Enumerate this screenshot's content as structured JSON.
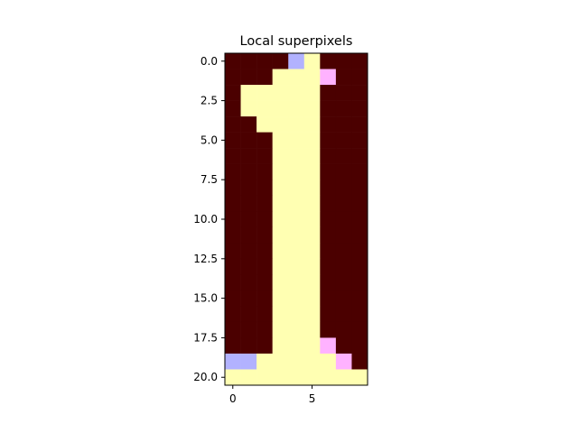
{
  "chart_data": {
    "type": "heatmap",
    "title": "Local superpixels",
    "xlabel": "",
    "ylabel": "",
    "xlim": [
      -0.5,
      8.5
    ],
    "ylim": [
      20.5,
      -0.5
    ],
    "x_ticks": [
      0,
      5
    ],
    "x_tick_labels": [
      "0",
      "5"
    ],
    "y_ticks": [
      0.0,
      2.5,
      5.0,
      7.5,
      10.0,
      12.5,
      15.0,
      17.5,
      20.0
    ],
    "y_tick_labels": [
      "0.0",
      "2.5",
      "5.0",
      "7.5",
      "10.0",
      "12.5",
      "15.0",
      "17.5",
      "20.0"
    ],
    "grid": false,
    "colors": {
      "D": "#4b0000",
      "Y": "#ffffb2",
      "B": "#b2b2ff",
      "P": "#ffb2ff"
    },
    "rows": [
      "DDDDBYDDD",
      "DDDYYYPDD",
      "DYYYYYDDD",
      "DYYYYYDDD",
      "DDYYYYDDD",
      "DDDYYYDDD",
      "DDDYYYDDD",
      "DDDYYYDDD",
      "DDDYYYDDD",
      "DDDYYYDDD",
      "DDDYYYDDD",
      "DDDYYYDDD",
      "DDDYYYDDD",
      "DDDYYYDDD",
      "DDDYYYDDD",
      "DDDYYYDDD",
      "DDDYYYDDD",
      "DDDYYYDDD",
      "DDDYYYPDD",
      "BBYYYYYPD",
      "YYYYYYYYY"
    ]
  }
}
